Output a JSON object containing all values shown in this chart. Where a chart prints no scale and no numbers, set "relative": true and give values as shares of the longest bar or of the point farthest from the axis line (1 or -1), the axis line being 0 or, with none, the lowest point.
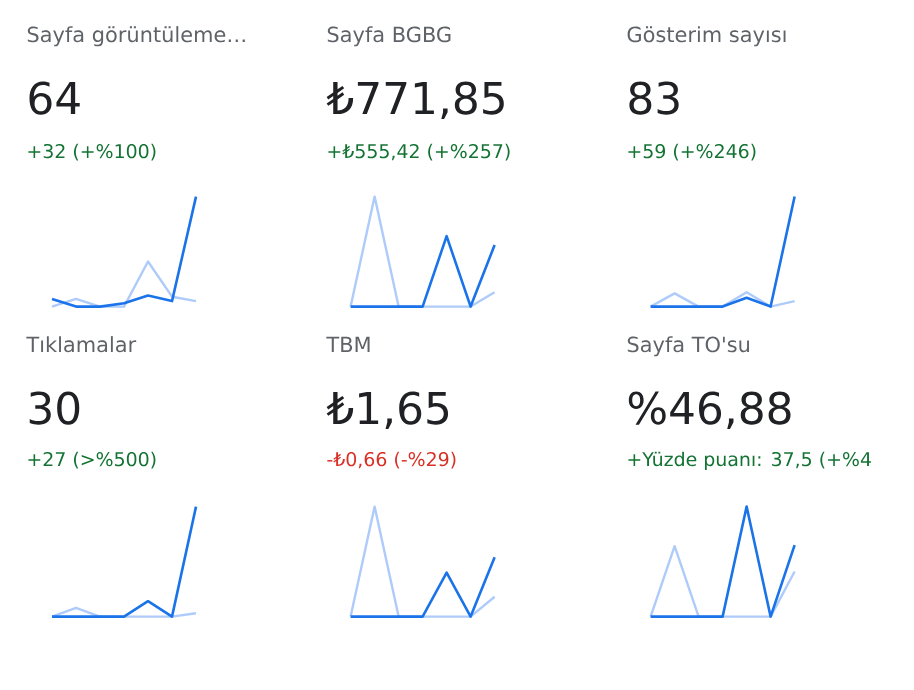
{
  "chart_data": [
    {
      "type": "line",
      "title": "Sayfa görüntüleme…",
      "subtitle": "64",
      "annotations": [
        "+32 (+%100)"
      ],
      "relative": true,
      "categories": [
        null,
        null,
        null,
        null,
        null,
        null,
        null
      ],
      "series": [
        {
          "color": "#aecbfa",
          "values": [
            0,
            0.07,
            0,
            0,
            0.41,
            0.09,
            0.05
          ]
        },
        {
          "color": "#1a73e8",
          "values": [
            0.07,
            0,
            0,
            0.03,
            0.1,
            0.05,
            1
          ]
        }
      ]
    },
    {
      "type": "line",
      "title": "Sayfa BGBG",
      "subtitle": "₺771,85",
      "annotations": [
        "+₺555,42 (+%257)"
      ],
      "relative": true,
      "categories": [
        null,
        null,
        null,
        null,
        null,
        null,
        null
      ],
      "series": [
        {
          "color": "#aecbfa",
          "values": [
            0,
            1,
            0,
            0,
            0,
            0,
            0.13
          ]
        },
        {
          "color": "#1a73e8",
          "values": [
            0,
            0,
            0,
            0,
            0.64,
            0,
            0.56
          ]
        }
      ]
    },
    {
      "type": "line",
      "title": "Gösterim sayısı",
      "subtitle": "83",
      "annotations": [
        "+59 (+%246)"
      ],
      "relative": true,
      "categories": [
        null,
        null,
        null,
        null,
        null,
        null,
        null
      ],
      "series": [
        {
          "color": "#aecbfa",
          "values": [
            0,
            0.12,
            0,
            0,
            0.13,
            0,
            0.05
          ]
        },
        {
          "color": "#1a73e8",
          "values": [
            0,
            0,
            0,
            0,
            0.08,
            0,
            1
          ]
        }
      ]
    },
    {
      "type": "line",
      "title": "Tıklamalar",
      "subtitle": "30",
      "annotations": [
        "+27 (>%500)"
      ],
      "relative": true,
      "categories": [
        null,
        null,
        null,
        null,
        null,
        null,
        null
      ],
      "series": [
        {
          "color": "#aecbfa",
          "values": [
            0,
            0.08,
            0,
            0,
            0,
            0,
            0.03
          ]
        },
        {
          "color": "#1a73e8",
          "values": [
            0,
            0,
            0,
            0,
            0.14,
            0,
            1
          ]
        }
      ]
    },
    {
      "type": "line",
      "title": "TBM",
      "subtitle": "₺1,65",
      "annotations": [
        "-₺0,66 (-%29)"
      ],
      "relative": true,
      "categories": [
        null,
        null,
        null,
        null,
        null,
        null,
        null
      ],
      "series": [
        {
          "color": "#aecbfa",
          "values": [
            0,
            1,
            0,
            0,
            0,
            0,
            0.18
          ]
        },
        {
          "color": "#1a73e8",
          "values": [
            0,
            0,
            0,
            0,
            0.4,
            0,
            0.54
          ]
        }
      ]
    },
    {
      "type": "line",
      "title": "Sayfa TO'su",
      "subtitle": "%46,88",
      "annotations": [
        "+Yüzde puanı: 37,5 (+%4"
      ],
      "relative": true,
      "categories": [
        null,
        null,
        null,
        null,
        null,
        null,
        null
      ],
      "series": [
        {
          "color": "#aecbfa",
          "values": [
            0,
            0.64,
            0,
            0,
            0,
            0,
            0.41
          ]
        },
        {
          "color": "#1a73e8",
          "values": [
            0,
            0,
            0,
            0,
            1,
            0,
            0.65
          ]
        }
      ]
    }
  ]
}
